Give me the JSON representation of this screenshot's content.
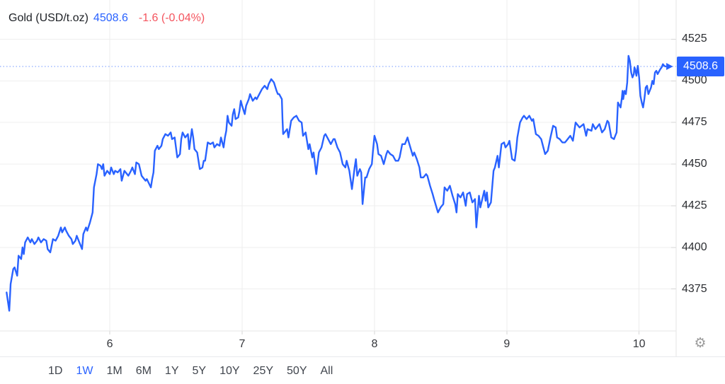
{
  "header": {
    "title": "Gold (USD/t.oz)",
    "last": "4508.6",
    "change": "-1.6 (-0.04%)"
  },
  "icons": {
    "gear": "⚙"
  },
  "colors": {
    "accent": "#2962ff",
    "down_red": "#f4545e",
    "grid": "#efefef",
    "vgrid": "#ececec",
    "tick": "#d6d6d6",
    "border": "#e4e4e4",
    "separator": "#e7e9ec",
    "axis_text": "#2b2d31",
    "badge_text": "#ffffff"
  },
  "toolbar": {
    "ranges": [
      "1D",
      "1W",
      "1M",
      "6M",
      "1Y",
      "5Y",
      "10Y",
      "25Y",
      "50Y",
      "All"
    ],
    "active": "1W"
  },
  "chart_data": {
    "type": "line",
    "title": "Gold (USD/t.oz)",
    "last": 4508.6,
    "last_label": "4508.6",
    "change": -1.6,
    "change_pct": "-0.04%",
    "x_ticks": [
      6,
      7,
      8,
      9,
      10
    ],
    "y_ticks": [
      4525,
      4500,
      4475,
      4450,
      4425,
      4400,
      4375
    ],
    "xlim": [
      5.17,
      10.28
    ],
    "ylim": [
      4349,
      4548.5
    ],
    "grid": true,
    "legend_position": "top-left",
    "line_color": "#2962ff",
    "series": [
      [
        5.22,
        4373
      ],
      [
        5.24,
        4362
      ],
      [
        5.25,
        4378
      ],
      [
        5.27,
        4387
      ],
      [
        5.28,
        4388
      ],
      [
        5.3,
        4383
      ],
      [
        5.31,
        4395
      ],
      [
        5.33,
        4393
      ],
      [
        5.34,
        4400
      ],
      [
        5.35,
        4396
      ],
      [
        5.36,
        4403
      ],
      [
        5.38,
        4406
      ],
      [
        5.4,
        4403
      ],
      [
        5.41,
        4405
      ],
      [
        5.43,
        4402
      ],
      [
        5.45,
        4404
      ],
      [
        5.46,
        4406
      ],
      [
        5.48,
        4403
      ],
      [
        5.5,
        4405
      ],
      [
        5.52,
        4404
      ],
      [
        5.53,
        4399
      ],
      [
        5.55,
        4397
      ],
      [
        5.57,
        4405
      ],
      [
        5.59,
        4404
      ],
      [
        5.61,
        4407
      ],
      [
        5.63,
        4412
      ],
      [
        5.64,
        4409
      ],
      [
        5.66,
        4412
      ],
      [
        5.67,
        4410
      ],
      [
        5.69,
        4407
      ],
      [
        5.71,
        4405
      ],
      [
        5.72,
        4402
      ],
      [
        5.74,
        4404
      ],
      [
        5.75,
        4407
      ],
      [
        5.77,
        4403
      ],
      [
        5.79,
        4399
      ],
      [
        5.8,
        4408
      ],
      [
        5.82,
        4412
      ],
      [
        5.83,
        4410
      ],
      [
        5.85,
        4415
      ],
      [
        5.87,
        4421
      ],
      [
        5.88,
        4436
      ],
      [
        5.9,
        4444
      ],
      [
        5.91,
        4450
      ],
      [
        5.93,
        4449
      ],
      [
        5.94,
        4447
      ],
      [
        5.95,
        4450
      ],
      [
        5.96,
        4443
      ],
      [
        5.98,
        4446
      ],
      [
        6.0,
        4444
      ],
      [
        6.01,
        4448
      ],
      [
        6.03,
        4444
      ],
      [
        6.04,
        4446
      ],
      [
        6.06,
        4445
      ],
      [
        6.08,
        4447
      ],
      [
        6.09,
        4440
      ],
      [
        6.11,
        4446
      ],
      [
        6.12,
        4445
      ],
      [
        6.14,
        4443
      ],
      [
        6.16,
        4446
      ],
      [
        6.17,
        4448
      ],
      [
        6.19,
        4444
      ],
      [
        6.2,
        4451
      ],
      [
        6.22,
        4450
      ],
      [
        6.24,
        4443
      ],
      [
        6.25,
        4442
      ],
      [
        6.27,
        4440
      ],
      [
        6.28,
        4441
      ],
      [
        6.31,
        4436
      ],
      [
        6.32,
        4441
      ],
      [
        6.33,
        4445
      ],
      [
        6.34,
        4458
      ],
      [
        6.36,
        4461
      ],
      [
        6.37,
        4459
      ],
      [
        6.39,
        4461
      ],
      [
        6.4,
        4465
      ],
      [
        6.42,
        4468
      ],
      [
        6.44,
        4467
      ],
      [
        6.46,
        4469
      ],
      [
        6.47,
        4465
      ],
      [
        6.49,
        4466
      ],
      [
        6.51,
        4454
      ],
      [
        6.53,
        4456
      ],
      [
        6.54,
        4465
      ],
      [
        6.55,
        4469
      ],
      [
        6.57,
        4466
      ],
      [
        6.59,
        4468
      ],
      [
        6.6,
        4459
      ],
      [
        6.62,
        4471
      ],
      [
        6.63,
        4466
      ],
      [
        6.64,
        4459
      ],
      [
        6.66,
        4457
      ],
      [
        6.68,
        4447
      ],
      [
        6.7,
        4448
      ],
      [
        6.71,
        4452
      ],
      [
        6.72,
        4452
      ],
      [
        6.74,
        4463
      ],
      [
        6.76,
        4462
      ],
      [
        6.78,
        4463
      ],
      [
        6.79,
        4460
      ],
      [
        6.81,
        4462
      ],
      [
        6.83,
        4461
      ],
      [
        6.84,
        4466
      ],
      [
        6.86,
        4460
      ],
      [
        6.87,
        4466
      ],
      [
        6.88,
        4470
      ],
      [
        6.89,
        4479
      ],
      [
        6.9,
        4475
      ],
      [
        6.92,
        4473
      ],
      [
        6.93,
        4480
      ],
      [
        6.94,
        4483
      ],
      [
        6.95,
        4477
      ],
      [
        6.97,
        4478
      ],
      [
        6.98,
        4482
      ],
      [
        6.99,
        4488
      ],
      [
        7.0,
        4485
      ],
      [
        7.02,
        4480
      ],
      [
        7.03,
        4485
      ],
      [
        7.05,
        4489
      ],
      [
        7.06,
        4492
      ],
      [
        7.08,
        4488
      ],
      [
        7.1,
        4490
      ],
      [
        7.11,
        4489
      ],
      [
        7.13,
        4492
      ],
      [
        7.15,
        4495
      ],
      [
        7.17,
        4497
      ],
      [
        7.19,
        4495
      ],
      [
        7.2,
        4498
      ],
      [
        7.22,
        4501
      ],
      [
        7.24,
        4499
      ],
      [
        7.26,
        4494
      ],
      [
        7.27,
        4492
      ],
      [
        7.28,
        4492
      ],
      [
        7.3,
        4489
      ],
      [
        7.305,
        4477
      ],
      [
        7.31,
        4468
      ],
      [
        7.33,
        4470
      ],
      [
        7.34,
        4471
      ],
      [
        7.35,
        4466
      ],
      [
        7.37,
        4476
      ],
      [
        7.39,
        4478
      ],
      [
        7.41,
        4479
      ],
      [
        7.43,
        4476
      ],
      [
        7.45,
        4475
      ],
      [
        7.46,
        4467
      ],
      [
        7.48,
        4469
      ],
      [
        7.5,
        4459
      ],
      [
        7.51,
        4462
      ],
      [
        7.53,
        4454
      ],
      [
        7.54,
        4457
      ],
      [
        7.56,
        4444
      ],
      [
        7.58,
        4457
      ],
      [
        7.6,
        4460
      ],
      [
        7.62,
        4467
      ],
      [
        7.63,
        4468
      ],
      [
        7.65,
        4465
      ],
      [
        7.67,
        4462
      ],
      [
        7.69,
        4465
      ],
      [
        7.7,
        4465
      ],
      [
        7.72,
        4460
      ],
      [
        7.74,
        4457
      ],
      [
        7.76,
        4450
      ],
      [
        7.78,
        4448
      ],
      [
        7.79,
        4452
      ],
      [
        7.81,
        4446
      ],
      [
        7.83,
        4435
      ],
      [
        7.85,
        4448
      ],
      [
        7.86,
        4453
      ],
      [
        7.87,
        4443
      ],
      [
        7.89,
        4447
      ],
      [
        7.9,
        4445
      ],
      [
        7.91,
        4426
      ],
      [
        7.93,
        4442
      ],
      [
        7.94,
        4442
      ],
      [
        7.96,
        4447
      ],
      [
        7.98,
        4450
      ],
      [
        7.99,
        4459
      ],
      [
        8.0,
        4467
      ],
      [
        8.02,
        4462
      ],
      [
        8.03,
        4456
      ],
      [
        8.05,
        4455
      ],
      [
        8.07,
        4450
      ],
      [
        8.09,
        4456
      ],
      [
        8.1,
        4458
      ],
      [
        8.12,
        4456
      ],
      [
        8.14,
        4455
      ],
      [
        8.16,
        4452
      ],
      [
        8.18,
        4452
      ],
      [
        8.19,
        4454
      ],
      [
        8.21,
        4462
      ],
      [
        8.23,
        4462
      ],
      [
        8.25,
        4466
      ],
      [
        8.26,
        4463
      ],
      [
        8.29,
        4455
      ],
      [
        8.3,
        4457
      ],
      [
        8.32,
        4453
      ],
      [
        8.34,
        4448
      ],
      [
        8.35,
        4442
      ],
      [
        8.37,
        4442
      ],
      [
        8.39,
        4444
      ],
      [
        8.4,
        4443
      ],
      [
        8.42,
        4437
      ],
      [
        8.44,
        4432
      ],
      [
        8.45,
        4429
      ],
      [
        8.48,
        4421
      ],
      [
        8.5,
        4424
      ],
      [
        8.52,
        4426
      ],
      [
        8.53,
        4436
      ],
      [
        8.55,
        4434
      ],
      [
        8.57,
        4437
      ],
      [
        8.59,
        4431
      ],
      [
        8.61,
        4426
      ],
      [
        8.62,
        4421
      ],
      [
        8.63,
        4432
      ],
      [
        8.65,
        4430
      ],
      [
        8.67,
        4433
      ],
      [
        8.69,
        4425
      ],
      [
        8.7,
        4432
      ],
      [
        8.72,
        4433
      ],
      [
        8.74,
        4427
      ],
      [
        8.76,
        4429
      ],
      [
        8.77,
        4412
      ],
      [
        8.79,
        4431
      ],
      [
        8.8,
        4424
      ],
      [
        8.83,
        4434
      ],
      [
        8.84,
        4428
      ],
      [
        8.85,
        4433
      ],
      [
        8.86,
        4424
      ],
      [
        8.88,
        4427
      ],
      [
        8.9,
        4446
      ],
      [
        8.91,
        4448
      ],
      [
        8.93,
        4455
      ],
      [
        8.94,
        4448
      ],
      [
        8.96,
        4462
      ],
      [
        8.98,
        4463
      ],
      [
        8.99,
        4460
      ],
      [
        9.01,
        4462
      ],
      [
        9.02,
        4464
      ],
      [
        9.04,
        4453
      ],
      [
        9.06,
        4452
      ],
      [
        9.07,
        4458
      ],
      [
        9.08,
        4466
      ],
      [
        9.1,
        4475
      ],
      [
        9.12,
        4478
      ],
      [
        9.13,
        4479
      ],
      [
        9.15,
        4477
      ],
      [
        9.17,
        4479
      ],
      [
        9.19,
        4476
      ],
      [
        9.2,
        4477
      ],
      [
        9.22,
        4468
      ],
      [
        9.24,
        4467
      ],
      [
        9.26,
        4465
      ],
      [
        9.28,
        4459
      ],
      [
        9.29,
        4456
      ],
      [
        9.31,
        4458
      ],
      [
        9.33,
        4466
      ],
      [
        9.35,
        4473
      ],
      [
        9.37,
        4472
      ],
      [
        9.38,
        4466
      ],
      [
        9.4,
        4465
      ],
      [
        9.42,
        4463
      ],
      [
        9.44,
        4463
      ],
      [
        9.45,
        4464
      ],
      [
        9.48,
        4467
      ],
      [
        9.5,
        4464
      ],
      [
        9.52,
        4475
      ],
      [
        9.55,
        4472
      ],
      [
        9.58,
        4474
      ],
      [
        9.6,
        4467
      ],
      [
        9.61,
        4471
      ],
      [
        9.64,
        4470
      ],
      [
        9.65,
        4474
      ],
      [
        9.67,
        4471
      ],
      [
        9.69,
        4473
      ],
      [
        9.7,
        4474
      ],
      [
        9.72,
        4469
      ],
      [
        9.74,
        4471
      ],
      [
        9.76,
        4476
      ],
      [
        9.77,
        4475
      ],
      [
        9.79,
        4466
      ],
      [
        9.81,
        4465
      ],
      [
        9.82,
        4467
      ],
      [
        9.83,
        4469
      ],
      [
        9.84,
        4487
      ],
      [
        9.86,
        4484
      ],
      [
        9.87,
        4490
      ],
      [
        9.875,
        4494
      ],
      [
        9.88,
        4489
      ],
      [
        9.89,
        4494
      ],
      [
        9.9,
        4492
      ],
      [
        9.91,
        4499
      ],
      [
        9.92,
        4515
      ],
      [
        9.93,
        4512
      ],
      [
        9.94,
        4505
      ],
      [
        9.95,
        4502
      ],
      [
        9.96,
        4504
      ],
      [
        9.965,
        4508
      ],
      [
        9.97,
        4507
      ],
      [
        9.98,
        4503
      ],
      [
        9.99,
        4509
      ],
      [
        10.0,
        4502
      ],
      [
        10.01,
        4491
      ],
      [
        10.02,
        4487
      ],
      [
        10.03,
        4484
      ],
      [
        10.04,
        4489
      ],
      [
        10.05,
        4496
      ],
      [
        10.06,
        4497
      ],
      [
        10.07,
        4492
      ],
      [
        10.09,
        4496
      ],
      [
        10.1,
        4500
      ],
      [
        10.11,
        4498
      ],
      [
        10.12,
        4505
      ],
      [
        10.13,
        4506
      ],
      [
        10.14,
        4504
      ],
      [
        10.16,
        4507
      ],
      [
        10.17,
        4508
      ],
      [
        10.18,
        4510
      ],
      [
        10.19,
        4509
      ],
      [
        10.2,
        4508.6
      ]
    ]
  }
}
